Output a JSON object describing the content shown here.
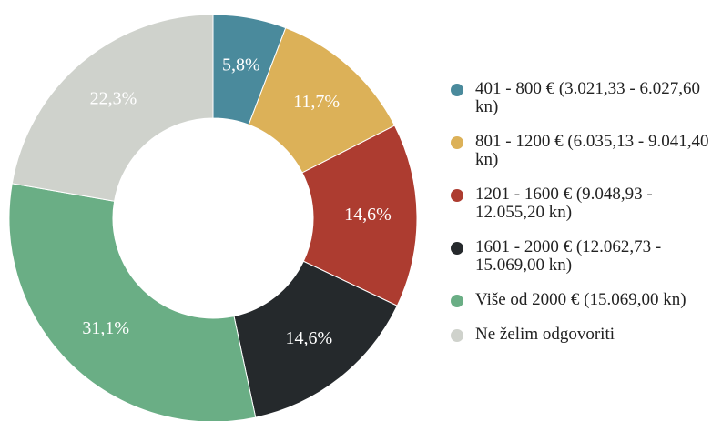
{
  "chart_data": {
    "type": "pie",
    "categories": [
      "401 - 800 € (3.021,33 - 6.027,60 kn)",
      "801 - 1200 € (6.035,13 - 9.041,40 kn)",
      "1201 - 1600 € (9.048,93 - 12.055,20 kn)",
      "1601 - 2000 € (12.062,73 - 15.069,00 kn)",
      "Više od 2000 € (15.069,00 kn)",
      "Ne želim odgovoriti"
    ],
    "values": [
      5.8,
      11.7,
      14.6,
      14.6,
      31.1,
      22.3
    ],
    "value_labels": [
      "5,8%",
      "11,7%",
      "14,6%",
      "14,6%",
      "31,1%",
      "22,3%"
    ],
    "colors": [
      "#4a8a9c",
      "#dcb158",
      "#ad3c30",
      "#25292c",
      "#6aae85",
      "#cfd2cc"
    ]
  }
}
